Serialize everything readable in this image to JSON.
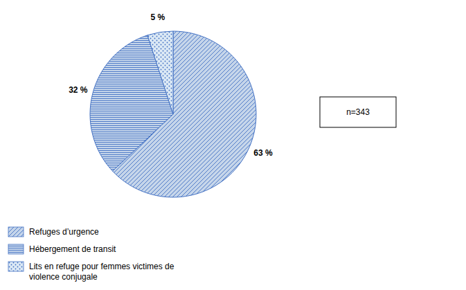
{
  "chart_data": {
    "type": "pie",
    "categories": [
      "Refuges d’urgence",
      "Hébergement de transit",
      "Lits en refuge pour femmes victimes de\nviolence conjugale"
    ],
    "values": [
      63,
      32,
      5
    ],
    "value_labels": [
      "63 %",
      "32 %",
      "5 %"
    ],
    "data_labels": true,
    "colors": [
      "#c5d5ea",
      "#c5d5ea",
      "#dce9f5"
    ],
    "color": "#4472C4",
    "annotations": [
      "n=343"
    ],
    "legend": "lower left"
  }
}
